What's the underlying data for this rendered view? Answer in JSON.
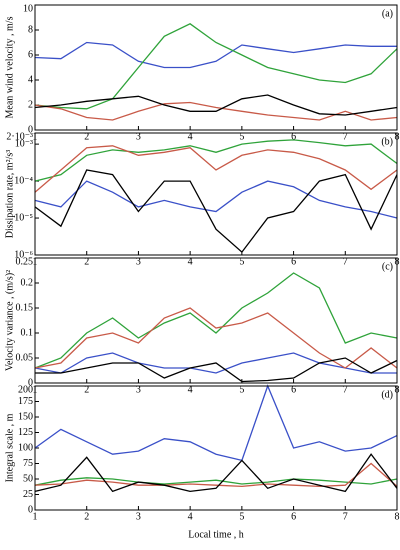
{
  "chart_data": [
    {
      "type": "line",
      "annotation": "(a)",
      "ylabel": "Mean wind velocity , m/s",
      "x": [
        1,
        1.5,
        2,
        2.5,
        3,
        3.5,
        4,
        4.5,
        5,
        5.5,
        6,
        6.5,
        7,
        7.5,
        8
      ],
      "xlim": [
        1,
        8
      ],
      "xticks": [
        1,
        2,
        3,
        4,
        5,
        6,
        7,
        8
      ],
      "ylim": [
        0,
        10
      ],
      "yticks": [
        0,
        2,
        4,
        6,
        8,
        10
      ],
      "series": [
        {
          "color": "#3a50c8",
          "values": [
            5.8,
            5.7,
            7,
            6.8,
            5.5,
            5,
            5,
            5.5,
            6.8,
            6.5,
            6.2,
            6.5,
            6.8,
            6.7,
            6.7
          ]
        },
        {
          "color": "#2fa33a",
          "values": [
            2,
            1.8,
            1.7,
            2.5,
            5,
            7.5,
            8.5,
            7,
            6,
            5,
            4.5,
            4,
            3.8,
            4.5,
            6.5
          ]
        },
        {
          "color": "#c85a48",
          "values": [
            2,
            1.7,
            1,
            0.8,
            1.5,
            2.1,
            2.2,
            1.8,
            1.5,
            1.2,
            1,
            0.8,
            1.5,
            0.8,
            1
          ]
        },
        {
          "color": "#000000",
          "values": [
            1.8,
            2,
            2.3,
            2.5,
            2.7,
            2,
            1.5,
            1.5,
            2.5,
            2.8,
            2,
            1.3,
            1.2,
            1.5,
            1.8
          ]
        }
      ]
    },
    {
      "type": "line",
      "annotation": "(b)",
      "ylabel": "Dissipation rate, m²/s³",
      "log": true,
      "x": [
        1,
        1.5,
        2,
        2.5,
        3,
        3.5,
        4,
        4.5,
        5,
        5.5,
        6,
        6.5,
        7,
        7.5,
        8
      ],
      "xlim": [
        1,
        8
      ],
      "xticks": [
        1,
        2,
        3,
        4,
        5,
        6,
        7,
        8
      ],
      "ylim": [
        1e-06,
        0.002
      ],
      "yticks": [
        {
          "value": 1e-06,
          "label": "10⁻⁶"
        },
        {
          "value": 1e-05,
          "label": "10⁻⁵"
        },
        {
          "value": 0.0001,
          "label": "10⁻⁴"
        },
        {
          "value": 0.001,
          "label": "10⁻³"
        },
        {
          "value": 0.002,
          "label": "2·10⁻³"
        }
      ],
      "series": [
        {
          "color": "#3a50c8",
          "values": [
            3e-05,
            2e-05,
            0.0001,
            5e-05,
            2e-05,
            3e-05,
            2e-05,
            1.5e-05,
            5e-05,
            0.0001,
            7e-05,
            3e-05,
            2e-05,
            1.5e-05,
            1e-05
          ]
        },
        {
          "color": "#2fa33a",
          "values": [
            0.0001,
            0.00015,
            0.0005,
            0.0007,
            0.0006,
            0.0007,
            0.0009,
            0.0006,
            0.001,
            0.0012,
            0.0013,
            0.0011,
            0.0009,
            0.001,
            0.0003
          ]
        },
        {
          "color": "#c85a48",
          "values": [
            5e-05,
            0.0002,
            0.0008,
            0.0009,
            0.0005,
            0.0006,
            0.0008,
            0.0002,
            0.0005,
            0.0007,
            0.0006,
            0.0004,
            0.0002,
            6e-05,
            0.0002
          ]
        },
        {
          "color": "#000000",
          "values": [
            2e-05,
            6e-06,
            0.0002,
            0.00015,
            1.5e-05,
            0.0001,
            0.0001,
            5e-06,
            1.2e-06,
            1e-05,
            1.5e-05,
            0.0001,
            0.00015,
            5e-06,
            0.00015
          ]
        }
      ]
    },
    {
      "type": "line",
      "annotation": "(c)",
      "ylabel": "Velocity variance , (m/s)²",
      "x": [
        1,
        1.5,
        2,
        2.5,
        3,
        3.5,
        4,
        4.5,
        5,
        5.5,
        6,
        6.5,
        7,
        7.5,
        8
      ],
      "xlim": [
        1,
        8
      ],
      "xticks": [
        1,
        2,
        3,
        4,
        5,
        6,
        7,
        8
      ],
      "ylim": [
        0,
        0.25
      ],
      "yticks": [
        0,
        0.05,
        0.1,
        0.15,
        0.2,
        0.25
      ],
      "series": [
        {
          "color": "#3a50c8",
          "values": [
            0.03,
            0.02,
            0.05,
            0.06,
            0.04,
            0.03,
            0.03,
            0.02,
            0.04,
            0.05,
            0.06,
            0.04,
            0.03,
            0.02,
            0.02
          ]
        },
        {
          "color": "#2fa33a",
          "values": [
            0.03,
            0.05,
            0.1,
            0.13,
            0.09,
            0.12,
            0.14,
            0.1,
            0.15,
            0.18,
            0.22,
            0.19,
            0.08,
            0.1,
            0.09
          ]
        },
        {
          "color": "#c85a48",
          "values": [
            0.03,
            0.04,
            0.09,
            0.1,
            0.08,
            0.13,
            0.15,
            0.11,
            0.12,
            0.14,
            0.1,
            0.06,
            0.03,
            0.07,
            0.03
          ]
        },
        {
          "color": "#000000",
          "values": [
            0.02,
            0.02,
            0.03,
            0.04,
            0.04,
            0.01,
            0.03,
            0.04,
            0.003,
            0.005,
            0.01,
            0.04,
            0.05,
            0.02,
            0.045
          ]
        }
      ]
    },
    {
      "type": "line",
      "annotation": "(d)",
      "ylabel": "Integral scale , m",
      "xlabel": "Local time , h",
      "x": [
        1,
        1.5,
        2,
        2.5,
        3,
        3.5,
        4,
        4.5,
        5,
        5.5,
        6,
        6.5,
        7,
        7.5,
        8
      ],
      "xlim": [
        1,
        8
      ],
      "xticks": [
        1,
        2,
        3,
        4,
        5,
        6,
        7,
        8
      ],
      "ylim": [
        0,
        200
      ],
      "yticks": [
        0,
        25,
        50,
        75,
        100,
        125,
        150,
        175,
        200
      ],
      "series": [
        {
          "color": "#3a50c8",
          "values": [
            100,
            130,
            110,
            90,
            95,
            115,
            110,
            90,
            80,
            200,
            100,
            110,
            95,
            100,
            120
          ]
        },
        {
          "color": "#2fa33a",
          "values": [
            40,
            48,
            52,
            50,
            45,
            42,
            45,
            48,
            42,
            45,
            50,
            48,
            45,
            42,
            50
          ]
        },
        {
          "color": "#c85a48",
          "values": [
            40,
            42,
            48,
            45,
            40,
            40,
            42,
            40,
            38,
            42,
            40,
            38,
            40,
            75,
            38
          ]
        },
        {
          "color": "#000000",
          "values": [
            30,
            40,
            85,
            30,
            45,
            40,
            30,
            35,
            80,
            35,
            50,
            40,
            30,
            90,
            35
          ]
        }
      ]
    }
  ]
}
